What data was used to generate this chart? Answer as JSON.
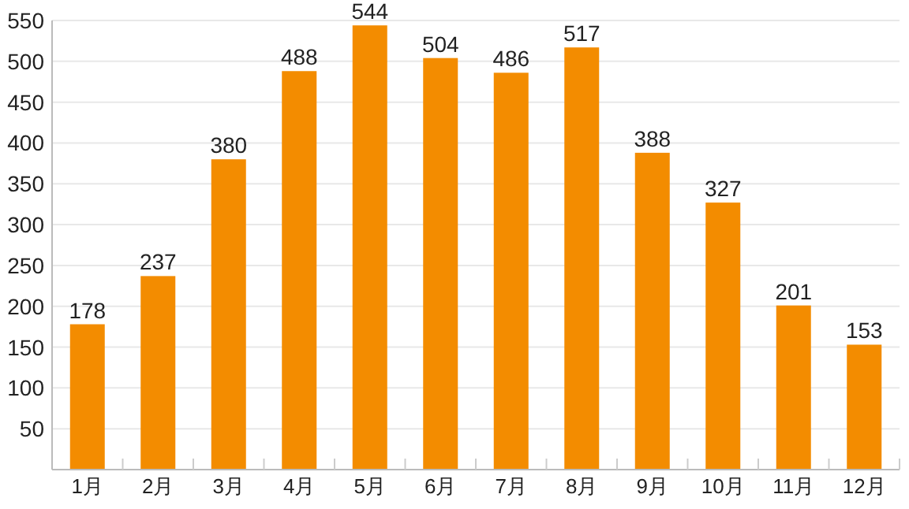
{
  "chart_data": {
    "type": "bar",
    "categories": [
      "1月",
      "2月",
      "3月",
      "4月",
      "5月",
      "6月",
      "7月",
      "8月",
      "9月",
      "10月",
      "11月",
      "12月"
    ],
    "values": [
      178,
      237,
      380,
      488,
      544,
      504,
      486,
      517,
      388,
      327,
      201,
      153
    ],
    "color": "#f38c00",
    "ylim": [
      0,
      550
    ],
    "yticks": [
      {
        "value": 0,
        "label": null
      },
      50,
      100,
      150,
      200,
      250,
      300,
      350,
      400,
      450,
      500,
      550
    ],
    "grid": "y",
    "data_labels": true
  }
}
